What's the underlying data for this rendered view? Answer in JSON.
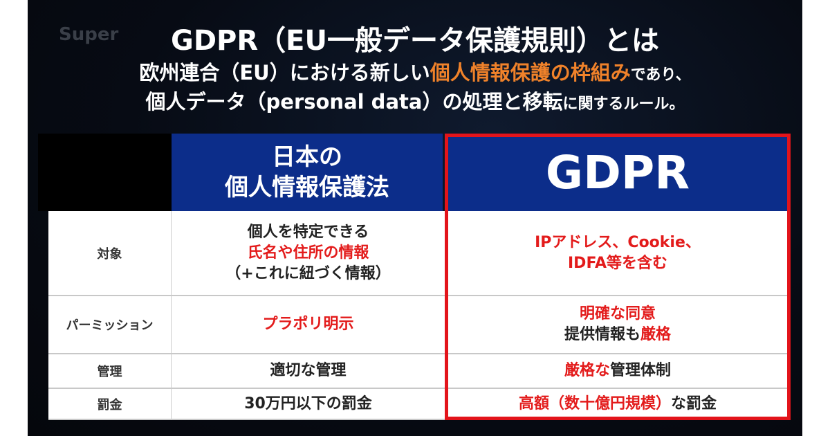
{
  "watermark": "Super",
  "title": "GDPR（EU一般データ保護規則）とは",
  "subtitle_line1": [
    {
      "text": "欧州連合（EU）における新しい",
      "style": "white"
    },
    {
      "text": "個人情報保護の枠組み",
      "style": "orange"
    },
    {
      "text": "であり、",
      "style": "small"
    }
  ],
  "subtitle_line2": [
    {
      "text": "個人データ（personal data）の処理と移転",
      "style": "white"
    },
    {
      "text": "に関するルール。",
      "style": "small"
    }
  ],
  "table": {
    "headers": {
      "japan": [
        "日本の",
        "個人情報保護法"
      ],
      "gdpr": "GDPR"
    },
    "rows": [
      {
        "label": "対象",
        "japan": [
          [
            {
              "t": "個人を特定できる",
              "red": false
            }
          ],
          [
            {
              "t": "氏名や住所の情報",
              "red": true
            }
          ],
          [
            {
              "t": "（+これに紐づく情報）",
              "red": false
            }
          ]
        ],
        "gdpr": [
          [
            {
              "t": "IPアドレス、Cookie、",
              "red": true
            }
          ],
          [
            {
              "t": "IDFA等を含む",
              "red": true
            }
          ]
        ]
      },
      {
        "label": "パーミッション",
        "japan": [
          [
            {
              "t": "プラポリ明示",
              "red": true
            }
          ]
        ],
        "gdpr": [
          [
            {
              "t": "明確な同意",
              "red": true
            }
          ],
          [
            {
              "t": "提供情報も",
              "red": false
            },
            {
              "t": "厳格",
              "red": true
            }
          ]
        ]
      },
      {
        "label": "管理",
        "japan": [
          [
            {
              "t": "適切な管理",
              "red": false
            }
          ]
        ],
        "gdpr": [
          [
            {
              "t": "厳格な",
              "red": true
            },
            {
              "t": "管理体制",
              "red": false
            }
          ]
        ]
      },
      {
        "label": "罰金",
        "japan": [
          [
            {
              "t": "30万円以下の罰金",
              "red": false
            }
          ]
        ],
        "gdpr": [
          [
            {
              "t": "高額（数十億円規模）",
              "red": true
            },
            {
              "t": "な罰金",
              "red": false
            }
          ]
        ]
      }
    ]
  },
  "colors": {
    "header_blue": "#0c2d8a",
    "highlight_red": "#e31b1b",
    "orange": "#f0822a"
  }
}
